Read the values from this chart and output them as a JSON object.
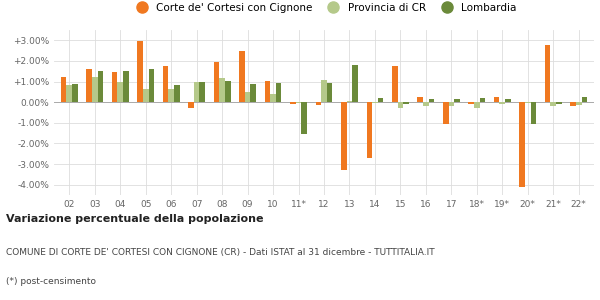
{
  "years": [
    "02",
    "03",
    "04",
    "05",
    "06",
    "07",
    "08",
    "09",
    "10",
    "11*",
    "12",
    "13",
    "14",
    "15",
    "16",
    "17",
    "18*",
    "19*",
    "20*",
    "21*",
    "22*"
  ],
  "corte": [
    1.2,
    1.6,
    1.45,
    2.95,
    1.75,
    -0.3,
    1.95,
    2.5,
    1.05,
    -0.1,
    -0.15,
    -3.3,
    -2.7,
    1.75,
    0.25,
    -1.05,
    -0.1,
    0.25,
    -4.1,
    2.75,
    -0.2
  ],
  "provincia": [
    0.85,
    1.2,
    1.0,
    0.65,
    0.65,
    1.0,
    1.15,
    0.5,
    0.4,
    -0.05,
    1.1,
    0.05,
    -0.05,
    -0.3,
    -0.2,
    -0.2,
    -0.3,
    -0.1,
    -0.05,
    -0.2,
    -0.15
  ],
  "lombardia": [
    0.9,
    1.5,
    1.5,
    1.6,
    0.85,
    1.0,
    1.05,
    0.9,
    0.95,
    -1.55,
    0.95,
    1.8,
    0.2,
    -0.1,
    0.15,
    0.15,
    0.2,
    0.15,
    -1.05,
    -0.1,
    0.25
  ],
  "corte_color": "#f07820",
  "provincia_color": "#b5c98a",
  "lombardia_color": "#6b8a3a",
  "title_bold": "Variazione percentuale della popolazione",
  "subtitle": "COMUNE DI CORTE DE' CORTESI CON CIGNONE (CR) - Dati ISTAT al 31 dicembre - TUTTITALIA.IT",
  "footnote": "(*) post-censimento",
  "legend_labels": [
    "Corte de' Cortesi con Cignone",
    "Provincia di CR",
    "Lombardia"
  ],
  "ylim": [
    -4.5,
    3.5
  ],
  "yticks": [
    -4.0,
    -3.0,
    -2.0,
    -1.0,
    0.0,
    1.0,
    2.0,
    3.0
  ],
  "background_color": "#ffffff",
  "grid_color": "#dddddd"
}
